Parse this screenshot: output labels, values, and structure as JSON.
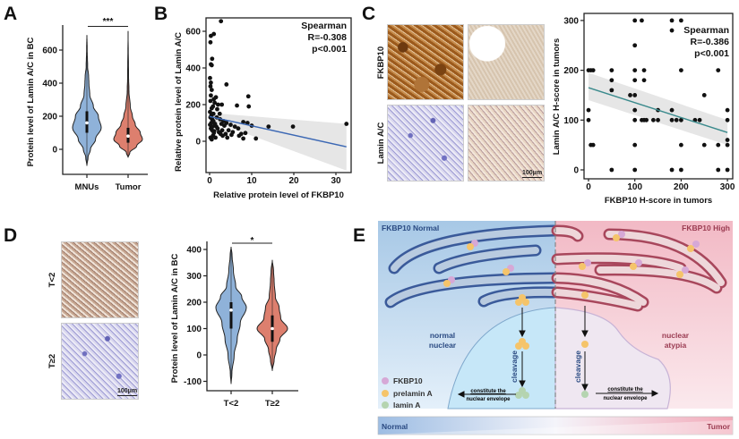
{
  "panels": {
    "a": "A",
    "b": "B",
    "c": "C",
    "d": "D",
    "e": "E"
  },
  "colors": {
    "blue_violin": "#8fb2d9",
    "red_violin": "#dd7f6e",
    "regression_b": "#3c68b4",
    "regression_c": "#3a8a8c",
    "ci_band": "#e3e3e3"
  },
  "chart_data": [
    {
      "id": "A",
      "type": "violin",
      "ylabel": "Protein level of Lamin A/C in BC",
      "xlabel": "",
      "categories": [
        "MNUs",
        "Tumor"
      ],
      "yticks": [
        "0",
        "200",
        "400",
        "600"
      ],
      "ytick_values": [
        0,
        200,
        400,
        600
      ],
      "ylim": [
        -110,
        720
      ],
      "significance": "***",
      "series": [
        {
          "name": "MNUs",
          "median": 160,
          "q1": 100,
          "q3": 230,
          "min": -100,
          "max": 690,
          "density": [
            [
              -100,
              0
            ],
            [
              -50,
              0.08
            ],
            [
              0,
              0.25
            ],
            [
              60,
              0.6
            ],
            [
              130,
              1
            ],
            [
              200,
              0.8
            ],
            [
              260,
              0.45
            ],
            [
              330,
              0.2
            ],
            [
              400,
              0.14
            ],
            [
              440,
              0.12
            ],
            [
              500,
              0.05
            ],
            [
              600,
              0.02
            ],
            [
              690,
              0
            ]
          ]
        },
        {
          "name": "Tumor",
          "median": 80,
          "q1": 40,
          "q3": 130,
          "min": -50,
          "max": 715,
          "density": [
            [
              -50,
              0
            ],
            [
              -20,
              0.12
            ],
            [
              20,
              0.6
            ],
            [
              60,
              1
            ],
            [
              100,
              0.85
            ],
            [
              150,
              0.5
            ],
            [
              200,
              0.3
            ],
            [
              260,
              0.15
            ],
            [
              350,
              0.06
            ],
            [
              450,
              0.03
            ],
            [
              715,
              0
            ]
          ]
        }
      ]
    },
    {
      "id": "B",
      "type": "scatter",
      "xlabel": "Relative protein level of FKBP10",
      "ylabel": "Relative protein level of Lamin A/C",
      "xticks": [
        "0",
        "10",
        "20",
        "30"
      ],
      "xtick_values": [
        0,
        10,
        20,
        30
      ],
      "yticks": [
        "0",
        "200",
        "400",
        "600"
      ],
      "ytick_values": [
        0,
        200,
        400,
        600
      ],
      "xlim": [
        -0.8,
        34
      ],
      "ylim": [
        -170,
        680
      ],
      "annotation": [
        "Spearman",
        "R=-0.308",
        "p<0.001"
      ],
      "regression": {
        "x": [
          0,
          32.5
        ],
        "y": [
          135,
          -30
        ],
        "ci_low": [
          115,
          -160
        ],
        "ci_high": [
          155,
          95
        ]
      },
      "points": [
        [
          0.3,
          575
        ],
        [
          0.2,
          540
        ],
        [
          1,
          585
        ],
        [
          2.7,
          655
        ],
        [
          0.6,
          450
        ],
        [
          0.3,
          420
        ],
        [
          0.5,
          415
        ],
        [
          4,
          310
        ],
        [
          0.1,
          345
        ],
        [
          0.2,
          300
        ],
        [
          0.5,
          280
        ],
        [
          0.3,
          320
        ],
        [
          9.2,
          245
        ],
        [
          9.3,
          190
        ],
        [
          6.5,
          195
        ],
        [
          14,
          80
        ],
        [
          19.8,
          80
        ],
        [
          32.5,
          95
        ],
        [
          11,
          15
        ],
        [
          8,
          15
        ],
        [
          10,
          85
        ],
        [
          8.5,
          45
        ],
        [
          7,
          30
        ],
        [
          9,
          100
        ],
        [
          8,
          105
        ],
        [
          6,
          80
        ],
        [
          5,
          90
        ],
        [
          4.5,
          60
        ],
        [
          4,
          100
        ],
        [
          3.5,
          85
        ],
        [
          3,
          60
        ],
        [
          2.5,
          120
        ],
        [
          2,
          200
        ],
        [
          1.5,
          240
        ],
        [
          1.2,
          210
        ],
        [
          1,
          230
        ],
        [
          0.8,
          190
        ],
        [
          0.5,
          180
        ],
        [
          0.3,
          250
        ],
        [
          0.2,
          220
        ],
        [
          0.1,
          160
        ],
        [
          0.4,
          140
        ],
        [
          0.6,
          120
        ],
        [
          0.9,
          110
        ],
        [
          1.3,
          95
        ],
        [
          1.6,
          80
        ],
        [
          1.9,
          70
        ],
        [
          2.2,
          50
        ],
        [
          2.6,
          40
        ],
        [
          3.1,
          30
        ],
        [
          0.2,
          20
        ],
        [
          0.5,
          10
        ],
        [
          0.8,
          30
        ],
        [
          1.1,
          55
        ],
        [
          1.4,
          20
        ],
        [
          0.1,
          90
        ],
        [
          0.3,
          70
        ],
        [
          0.6,
          60
        ],
        [
          1.7,
          130
        ],
        [
          2.4,
          150
        ],
        [
          3.3,
          110
        ],
        [
          3.8,
          40
        ],
        [
          5.5,
          50
        ],
        [
          6.8,
          70
        ],
        [
          7.5,
          40
        ],
        [
          0.4,
          100
        ],
        [
          0.7,
          80
        ],
        [
          1.0,
          45
        ],
        [
          2.8,
          95
        ],
        [
          4.2,
          20
        ],
        [
          5.2,
          35
        ],
        [
          0.2,
          130
        ],
        [
          0.9,
          150
        ],
        [
          1.8,
          175
        ],
        [
          2.9,
          200
        ]
      ]
    },
    {
      "id": "C",
      "type": "scatter",
      "xlabel": "FKBP10 H-score in tumors",
      "ylabel": "Lamin A/C H-score in tumors",
      "xticks": [
        "0",
        "100",
        "200",
        "300"
      ],
      "xtick_values": [
        0,
        100,
        200,
        300
      ],
      "yticks": [
        "0",
        "100",
        "200",
        "300"
      ],
      "ytick_values": [
        0,
        100,
        200,
        300
      ],
      "xlim": [
        -10,
        310
      ],
      "ylim": [
        -10,
        320
      ],
      "annotation": [
        "Spearman",
        "R=-0.386",
        "p<0.001"
      ],
      "regression": {
        "x": [
          0,
          300
        ],
        "y": [
          165,
          75
        ],
        "ci_low": [
          140,
          50
        ],
        "ci_high": [
          195,
          100
        ]
      },
      "points": [
        [
          0,
          200
        ],
        [
          5,
          200
        ],
        [
          10,
          200
        ],
        [
          0,
          120
        ],
        [
          0,
          100
        ],
        [
          5,
          50
        ],
        [
          10,
          50
        ],
        [
          50,
          200
        ],
        [
          50,
          180
        ],
        [
          50,
          160
        ],
        [
          50,
          0
        ],
        [
          90,
          150
        ],
        [
          100,
          150
        ],
        [
          100,
          300
        ],
        [
          100,
          250
        ],
        [
          100,
          200
        ],
        [
          100,
          180
        ],
        [
          100,
          120
        ],
        [
          100,
          100
        ],
        [
          100,
          50
        ],
        [
          100,
          0
        ],
        [
          115,
          300
        ],
        [
          120,
          200
        ],
        [
          120,
          180
        ],
        [
          115,
          100
        ],
        [
          120,
          100
        ],
        [
          125,
          100
        ],
        [
          140,
          100
        ],
        [
          150,
          120
        ],
        [
          150,
          100
        ],
        [
          180,
          300
        ],
        [
          180,
          280
        ],
        [
          180,
          120
        ],
        [
          180,
          100
        ],
        [
          180,
          0
        ],
        [
          190,
          100
        ],
        [
          200,
          300
        ],
        [
          200,
          200
        ],
        [
          200,
          100
        ],
        [
          200,
          50
        ],
        [
          200,
          0
        ],
        [
          230,
          100
        ],
        [
          240,
          100
        ],
        [
          250,
          150
        ],
        [
          250,
          50
        ],
        [
          280,
          200
        ],
        [
          280,
          50
        ],
        [
          280,
          0
        ],
        [
          300,
          120
        ],
        [
          300,
          100
        ],
        [
          300,
          60
        ],
        [
          300,
          50
        ],
        [
          300,
          0
        ]
      ]
    },
    {
      "id": "D",
      "type": "violin",
      "ylabel": "Protein level of Lamin A/C in BC",
      "xlabel": "",
      "categories": [
        "T<2",
        "T≥2"
      ],
      "yticks": [
        "-100",
        "0",
        "100",
        "200",
        "300",
        "400"
      ],
      "ytick_values": [
        -100,
        0,
        100,
        200,
        300,
        400
      ],
      "ylim": [
        -120,
        420
      ],
      "significance": "*",
      "series": [
        {
          "name": "T<2",
          "median": 170,
          "q1": 100,
          "q3": 200,
          "min": -110,
          "max": 410,
          "density": [
            [
              -110,
              0
            ],
            [
              -70,
              0.05
            ],
            [
              0,
              0.2
            ],
            [
              60,
              0.4
            ],
            [
              120,
              0.6
            ],
            [
              180,
              1
            ],
            [
              220,
              0.7
            ],
            [
              260,
              0.3
            ],
            [
              320,
              0.15
            ],
            [
              380,
              0.06
            ],
            [
              410,
              0
            ]
          ]
        },
        {
          "name": "T≥2",
          "median": 100,
          "q1": 50,
          "q3": 150,
          "min": -60,
          "max": 360,
          "density": [
            [
              -60,
              0
            ],
            [
              -20,
              0.12
            ],
            [
              20,
              0.25
            ],
            [
              60,
              0.5
            ],
            [
              100,
              1
            ],
            [
              140,
              0.55
            ],
            [
              180,
              0.45
            ],
            [
              220,
              0.2
            ],
            [
              280,
              0.12
            ],
            [
              320,
              0.08
            ],
            [
              360,
              0
            ]
          ]
        }
      ]
    }
  ],
  "panel_c_images": {
    "row_labels": [
      "FKBP10",
      "Lamin A/C"
    ],
    "scale_bar": "100μm"
  },
  "panel_d_images": {
    "row_labels": [
      "T<2",
      "T≥2"
    ],
    "scale_bar": "100μm"
  },
  "diagram_e": {
    "left_title": "FKBP10 Normal",
    "right_title": "FKBP10 High",
    "left_nucleus": [
      "normal",
      "nuclear"
    ],
    "right_nucleus": [
      "nuclear",
      "atypia"
    ],
    "cleavage": "cleavage",
    "constitute": [
      "constitute the",
      "nuclear envelope"
    ],
    "legend": [
      {
        "label": "FKBP10",
        "color": "#d6a8d6"
      },
      {
        "label": "prelamin A",
        "color": "#f5c46a"
      },
      {
        "label": "lamin A",
        "color": "#b5d4b0"
      }
    ],
    "gradient_bar": {
      "left": "Normal",
      "right": "Tumor"
    }
  }
}
